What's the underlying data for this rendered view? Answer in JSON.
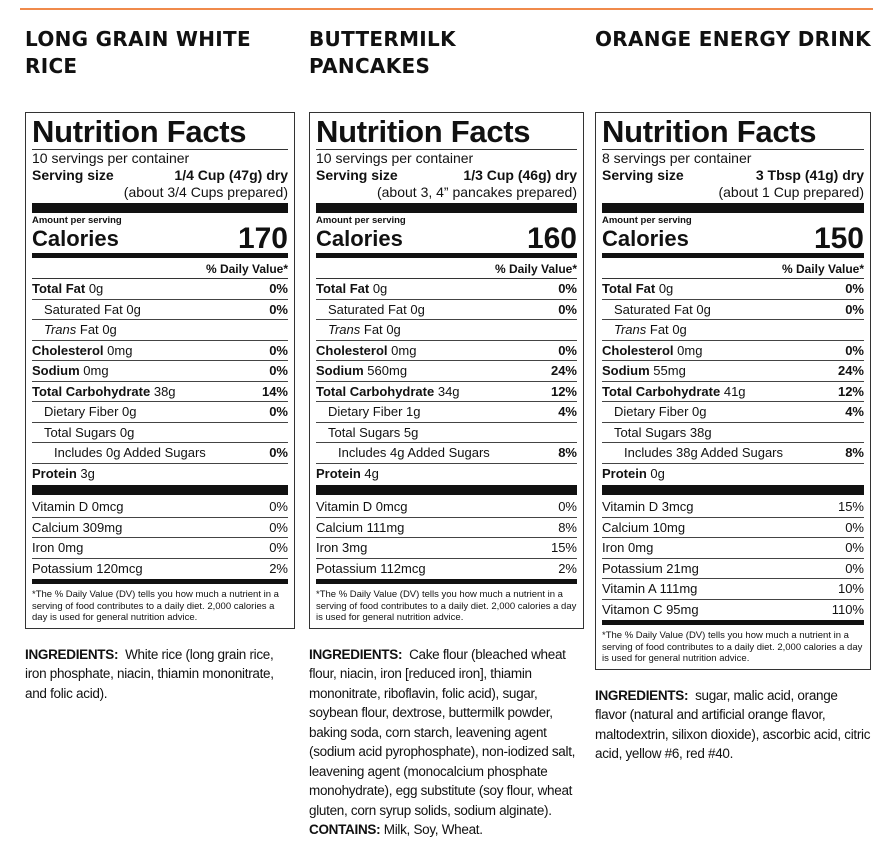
{
  "accent_color": "#f08a4b",
  "common": {
    "title": "Nutrition Facts",
    "serving_size_label": "Serving size",
    "amount_per_serving": "Amount per serving",
    "calories_label": "Calories",
    "dv_header": "% Daily Value*",
    "footnote": "*The % Daily Value (DV) tells you how much a nutrient in a serving of food contributes to a daily diet. 2,000 calories a day is used for general nutrition advice.",
    "ingredients_label": "INGREDIENTS:",
    "contains_label": "CONTAINS:"
  },
  "products": [
    {
      "name": "LONG GRAIN WHITE RICE",
      "servings": "10 servings per container",
      "serving_size": "1/4 Cup (47g) dry",
      "serving_note": "(about 3/4 Cups prepared)",
      "calories": "170",
      "nutrients": [
        {
          "italic": "",
          "name": "Total Fat",
          "amount": "0g",
          "dv": "0%",
          "bold": true,
          "indent": 0
        },
        {
          "italic": "",
          "name": "Saturated Fat",
          "amount": "0g",
          "dv": "0%",
          "bold": false,
          "indent": 1
        },
        {
          "italic": "Trans",
          "name": "Fat",
          "amount": "0g",
          "dv": "",
          "bold": false,
          "indent": 1
        },
        {
          "italic": "",
          "name": "Cholesterol",
          "amount": "0mg",
          "dv": "0%",
          "bold": true,
          "indent": 0
        },
        {
          "italic": "",
          "name": "Sodium",
          "amount": "0mg",
          "dv": "0%",
          "bold": true,
          "indent": 0
        },
        {
          "italic": "",
          "name": "Total Carbohydrate",
          "amount": "38g",
          "dv": "14%",
          "bold": true,
          "indent": 0
        },
        {
          "italic": "",
          "name": "Dietary Fiber",
          "amount": "0g",
          "dv": "0%",
          "bold": false,
          "indent": 1
        },
        {
          "italic": "",
          "name": "Total Sugars",
          "amount": "0g",
          "dv": "",
          "bold": false,
          "indent": 1
        },
        {
          "italic": "",
          "name": "Includes 0g Added Sugars",
          "amount": "",
          "dv": "0%",
          "bold": false,
          "indent": 2
        },
        {
          "italic": "",
          "name": "Protein",
          "amount": "3g",
          "dv": "",
          "bold": true,
          "indent": 0
        }
      ],
      "vitamins": [
        {
          "name": "Vitamin D 0mcg",
          "dv": "0%"
        },
        {
          "name": "Calcium 309mg",
          "dv": "0%"
        },
        {
          "name": "Iron 0mg",
          "dv": "0%"
        },
        {
          "name": "Potassium 120mcg",
          "dv": "2%"
        }
      ],
      "ingredients": "White rice (long grain rice, iron phosphate, niacin, thiamin mononitrate, and folic acid).",
      "contains": ""
    },
    {
      "name": "BUTTERMILK PANCAKES",
      "servings": "10 servings per container",
      "serving_size": "1/3 Cup (46g) dry",
      "serving_note": "(about 3, 4” pancakes prepared)",
      "calories": "160",
      "nutrients": [
        {
          "italic": "",
          "name": "Total Fat",
          "amount": "0g",
          "dv": "0%",
          "bold": true,
          "indent": 0
        },
        {
          "italic": "",
          "name": "Saturated Fat",
          "amount": "0g",
          "dv": "0%",
          "bold": false,
          "indent": 1
        },
        {
          "italic": "Trans",
          "name": "Fat",
          "amount": "0g",
          "dv": "",
          "bold": false,
          "indent": 1
        },
        {
          "italic": "",
          "name": "Cholesterol",
          "amount": "0mg",
          "dv": "0%",
          "bold": true,
          "indent": 0
        },
        {
          "italic": "",
          "name": "Sodium",
          "amount": "560mg",
          "dv": "24%",
          "bold": true,
          "indent": 0
        },
        {
          "italic": "",
          "name": "Total Carbohydrate",
          "amount": "34g",
          "dv": "12%",
          "bold": true,
          "indent": 0
        },
        {
          "italic": "",
          "name": "Dietary Fiber",
          "amount": "1g",
          "dv": "4%",
          "bold": false,
          "indent": 1
        },
        {
          "italic": "",
          "name": "Total Sugars",
          "amount": "5g",
          "dv": "",
          "bold": false,
          "indent": 1
        },
        {
          "italic": "",
          "name": "Includes 4g Added Sugars",
          "amount": "",
          "dv": "8%",
          "bold": false,
          "indent": 2
        },
        {
          "italic": "",
          "name": "Protein",
          "amount": "4g",
          "dv": "",
          "bold": true,
          "indent": 0
        }
      ],
      "vitamins": [
        {
          "name": "Vitamin D 0mcg",
          "dv": "0%"
        },
        {
          "name": "Calcium 111mg",
          "dv": "8%"
        },
        {
          "name": "Iron 3mg",
          "dv": "15%"
        },
        {
          "name": "Potassium 112mcg",
          "dv": "2%"
        }
      ],
      "ingredients": "Cake flour (bleached wheat flour, niacin, iron [reduced iron], thiamin mononitrate, riboflavin, folic acid), sugar, soybean flour, dextrose, buttermilk powder, baking soda, corn starch, leavening agent (sodium acid pyrophosphate), non-iodized salt, leavening agent (monocalcium phosphate monohydrate), egg substitute (soy flour, wheat gluten, corn syrup solids, sodium alginate).",
      "contains": "Milk, Soy, Wheat."
    },
    {
      "name": "ORANGE ENERGY DRINK",
      "servings": "8 servings per container",
      "serving_size": "3 Tbsp (41g) dry",
      "serving_note": "(about 1 Cup prepared)",
      "calories": "150",
      "nutrients": [
        {
          "italic": "",
          "name": "Total Fat",
          "amount": "0g",
          "dv": "0%",
          "bold": true,
          "indent": 0
        },
        {
          "italic": "",
          "name": "Saturated Fat",
          "amount": "0g",
          "dv": "0%",
          "bold": false,
          "indent": 1
        },
        {
          "italic": "Trans",
          "name": "Fat",
          "amount": "0g",
          "dv": "",
          "bold": false,
          "indent": 1
        },
        {
          "italic": "",
          "name": "Cholesterol",
          "amount": "0mg",
          "dv": "0%",
          "bold": true,
          "indent": 0
        },
        {
          "italic": "",
          "name": "Sodium",
          "amount": "55mg",
          "dv": "24%",
          "bold": true,
          "indent": 0
        },
        {
          "italic": "",
          "name": "Total Carbohydrate",
          "amount": "41g",
          "dv": "12%",
          "bold": true,
          "indent": 0
        },
        {
          "italic": "",
          "name": "Dietary Fiber",
          "amount": "0g",
          "dv": "4%",
          "bold": false,
          "indent": 1
        },
        {
          "italic": "",
          "name": "Total Sugars",
          "amount": "38g",
          "dv": "",
          "bold": false,
          "indent": 1
        },
        {
          "italic": "",
          "name": "Includes 38g Added Sugars",
          "amount": "",
          "dv": "8%",
          "bold": false,
          "indent": 2
        },
        {
          "italic": "",
          "name": "Protein",
          "amount": "0g",
          "dv": "",
          "bold": true,
          "indent": 0
        }
      ],
      "vitamins": [
        {
          "name": "Vitamin D 3mcg",
          "dv": "15%"
        },
        {
          "name": "Calcium 10mg",
          "dv": "0%"
        },
        {
          "name": "Iron 0mg",
          "dv": "0%"
        },
        {
          "name": "Potassium 21mg",
          "dv": "0%"
        },
        {
          "name": "Vitamin A 111mg",
          "dv": "10%"
        },
        {
          "name": "Vitamon C 95mg",
          "dv": "110%"
        }
      ],
      "ingredients": "sugar, malic acid, orange flavor (natural and artificial orange flavor, maltodextrin, silixon dioxide), ascorbic acid, citric acid, yellow #6, red #40.",
      "contains": ""
    }
  ]
}
